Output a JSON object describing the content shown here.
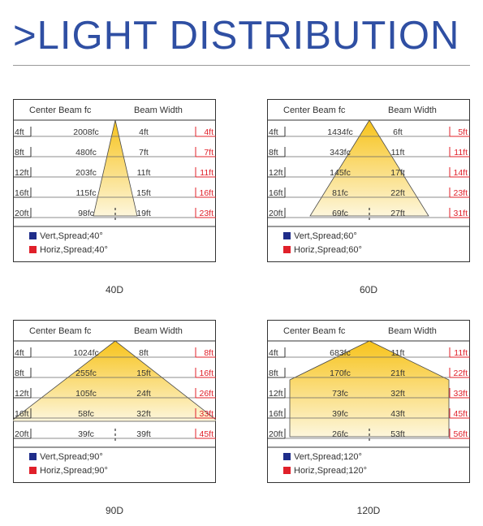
{
  "title": ">LIGHT DISTRIBUTION",
  "colors": {
    "title": "#2f4fa3",
    "vert_swatch": "#1f2d8a",
    "horiz_swatch": "#e0202a",
    "red_text": "#e0202a",
    "beam_fill_top": "#f7c31b",
    "beam_fill_bottom": "#fdf6dc"
  },
  "panels": [
    {
      "caption": "40D",
      "header": {
        "center_beam": "Center Beam fc",
        "beam_width": "Beam Width"
      },
      "rows": [
        {
          "distance": "4ft",
          "fc": "2008fc",
          "width": "4ft"
        },
        {
          "distance": "8ft",
          "fc": "480fc",
          "width": "7ft"
        },
        {
          "distance": "12ft",
          "fc": "203fc",
          "width": "11ft"
        },
        {
          "distance": "16ft",
          "fc": "115fc",
          "width": "15ft"
        },
        {
          "distance": "20ft",
          "fc": "98fc",
          "width": "19ft"
        }
      ],
      "right_values": [
        "4ft",
        "7ft",
        "11ft",
        "16ft",
        "23ft"
      ],
      "legend": {
        "vert": "Vert,Spread;40°",
        "horiz": "Horiz,Spread;40°"
      }
    },
    {
      "caption": "60D",
      "header": {
        "center_beam": "Center Beam fc",
        "beam_width": "Beam Width"
      },
      "rows": [
        {
          "distance": "4ft",
          "fc": "1434fc",
          "width": "6ft"
        },
        {
          "distance": "8ft",
          "fc": "343fc",
          "width": "11ft"
        },
        {
          "distance": "12ft",
          "fc": "145fc",
          "width": "17ft"
        },
        {
          "distance": "16ft",
          "fc": "81fc",
          "width": "22ft"
        },
        {
          "distance": "20ft",
          "fc": "69fc",
          "width": "27ft"
        }
      ],
      "right_values": [
        "5ft",
        "11ft",
        "14ft",
        "23ft",
        "31ft"
      ],
      "legend": {
        "vert": "Vert,Spread;60°",
        "horiz": "Horiz,Spread;60°"
      }
    },
    {
      "caption": "90D",
      "header": {
        "center_beam": "Center Beam fc",
        "beam_width": "Beam Width"
      },
      "rows": [
        {
          "distance": "4ft",
          "fc": "1024fc",
          "width": "8ft"
        },
        {
          "distance": "8ft",
          "fc": "255fc",
          "width": "15ft"
        },
        {
          "distance": "12ft",
          "fc": "105fc",
          "width": "24ft"
        },
        {
          "distance": "16ft",
          "fc": "58fc",
          "width": "32ft"
        },
        {
          "distance": "20ft",
          "fc": "39fc",
          "width": "39ft"
        }
      ],
      "right_values": [
        "8ft",
        "16ft",
        "26ft",
        "33ft",
        "45ft"
      ],
      "legend": {
        "vert": "Vert,Spread;90°",
        "horiz": "Horiz,Spread;90°"
      }
    },
    {
      "caption": "120D",
      "header": {
        "center_beam": "Center Beam fc",
        "beam_width": "Beam Width"
      },
      "rows": [
        {
          "distance": "4ft",
          "fc": "683fc",
          "width": "11ft"
        },
        {
          "distance": "8ft",
          "fc": "170fc",
          "width": "21ft"
        },
        {
          "distance": "12ft",
          "fc": "73fc",
          "width": "32ft"
        },
        {
          "distance": "16ft",
          "fc": "39fc",
          "width": "43ft"
        },
        {
          "distance": "20ft",
          "fc": "26fc",
          "width": "53ft"
        }
      ],
      "right_values": [
        "11ft",
        "22ft",
        "33ft",
        "45ft",
        "56ft"
      ],
      "legend": {
        "vert": "Vert,Spread;120°",
        "horiz": "Horiz,Spread;120°"
      }
    }
  ]
}
